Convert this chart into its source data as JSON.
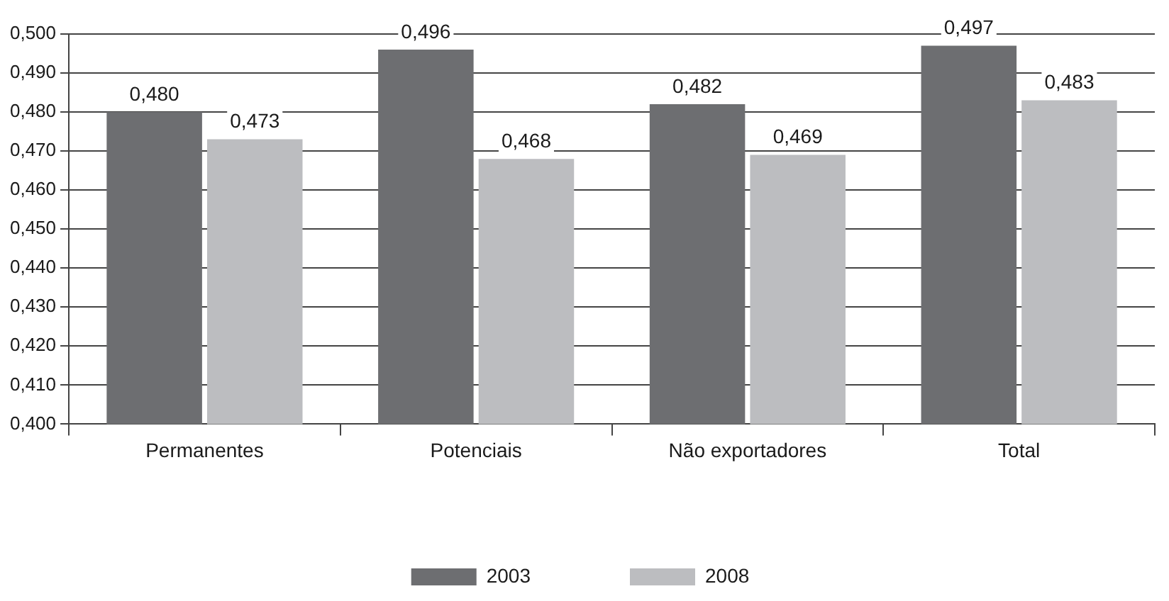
{
  "chart_data": {
    "type": "bar",
    "categories": [
      "Permanentes",
      "Potenciais",
      "Não exportadores",
      "Total"
    ],
    "series": [
      {
        "name": "2003",
        "color": "#6d6e71",
        "values": [
          0.48,
          0.496,
          0.482,
          0.497
        ],
        "value_labels": [
          "0,480",
          "0,496",
          "0,482",
          "0,497"
        ]
      },
      {
        "name": "2008",
        "color": "#bcbdc0",
        "values": [
          0.473,
          0.468,
          0.469,
          0.483
        ],
        "value_labels": [
          "0,473",
          "0,468",
          "0,469",
          "0,483"
        ]
      }
    ],
    "ylim": [
      0.4,
      0.5
    ],
    "yticks": [
      {
        "value": 0.4,
        "label": "0,400"
      },
      {
        "value": 0.41,
        "label": "0,410"
      },
      {
        "value": 0.42,
        "label": "0,420"
      },
      {
        "value": 0.43,
        "label": "0,430"
      },
      {
        "value": 0.44,
        "label": "0,440"
      },
      {
        "value": 0.45,
        "label": "0,450"
      },
      {
        "value": 0.46,
        "label": "0,460"
      },
      {
        "value": 0.47,
        "label": "0,470"
      },
      {
        "value": 0.48,
        "label": "0,480"
      },
      {
        "value": 0.49,
        "label": "0,490"
      },
      {
        "value": 0.5,
        "label": "0,500"
      }
    ],
    "grid": "y",
    "legend": "bottom"
  }
}
